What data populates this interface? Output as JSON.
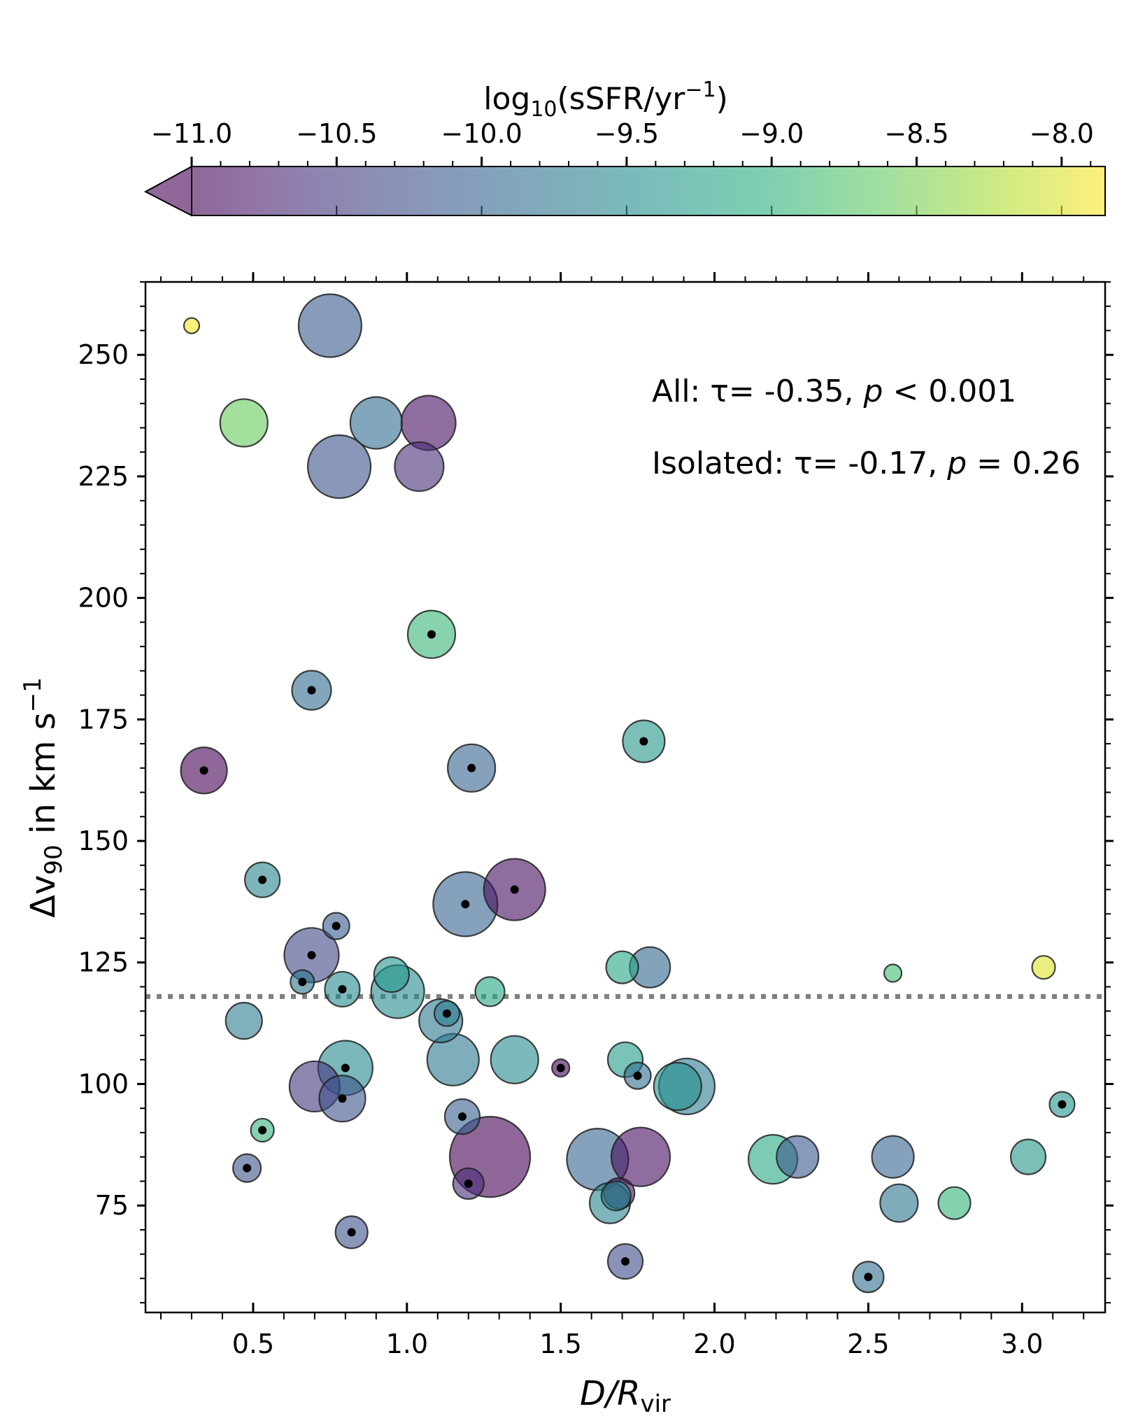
{
  "chart_data": {
    "type": "scatter",
    "title": "",
    "xlabel": "D/R",
    "xlabel_sub": "vir",
    "ylabel": "Δv",
    "ylabel_sub": "90",
    "ylabel_rest": " in km s",
    "ylabel_sup": "−1",
    "xlim": [
      0.15,
      3.27
    ],
    "ylim": [
      53,
      265
    ],
    "xticks": [
      0.5,
      1.0,
      1.5,
      2.0,
      2.5,
      3.0
    ],
    "xtick_labels": [
      "0.5",
      "1.0",
      "1.5",
      "2.0",
      "2.5",
      "3.0"
    ],
    "yticks": [
      75,
      100,
      125,
      150,
      175,
      200,
      225,
      250
    ],
    "ytick_labels": [
      "75",
      "100",
      "125",
      "150",
      "175",
      "200",
      "225",
      "250"
    ],
    "reference_line": {
      "y": 118,
      "style": "dotted",
      "color": "#808080"
    },
    "annotations": [
      {
        "label": "All: ",
        "tau": "τ= -0.35, ",
        "p": "p",
        "rest": " < 0.001"
      },
      {
        "label": "Isolated: ",
        "tau": "τ= -0.17, ",
        "p": "p",
        "rest": " = 0.26"
      }
    ],
    "colorbar": {
      "label_prefix": "log",
      "label_sub": "10",
      "label_mid": "(sSFR/yr",
      "label_sup": "−1",
      "label_end": ")",
      "range": [
        -11.0,
        -7.85
      ],
      "ticks": [
        -11.0,
        -10.5,
        -10.0,
        -9.5,
        -9.0,
        -8.5,
        -8.0
      ],
      "tick_labels": [
        "−11.0",
        "−10.5",
        "−10.0",
        "−9.5",
        "−9.0",
        "−8.5",
        "−8.0"
      ],
      "extend": "min",
      "colormap": "viridis",
      "alpha": 0.6
    },
    "marker_size_note": "relative marker radius",
    "points": [
      {
        "x": 0.3,
        "y": 256.0,
        "r": 0.22,
        "c": -7.9,
        "isolated": false
      },
      {
        "x": 0.75,
        "y": 256.0,
        "r": 0.9,
        "c": -10.1,
        "isolated": false
      },
      {
        "x": 0.47,
        "y": 236.0,
        "r": 0.68,
        "c": -8.6,
        "isolated": false
      },
      {
        "x": 0.9,
        "y": 236.0,
        "r": 0.74,
        "c": -9.9,
        "isolated": false
      },
      {
        "x": 1.07,
        "y": 236.0,
        "r": 0.78,
        "c": -10.9,
        "isolated": false
      },
      {
        "x": 0.78,
        "y": 227.0,
        "r": 0.9,
        "c": -10.2,
        "isolated": false
      },
      {
        "x": 1.04,
        "y": 227.0,
        "r": 0.7,
        "c": -10.6,
        "isolated": false
      },
      {
        "x": 1.08,
        "y": 192.5,
        "r": 0.68,
        "c": -8.9,
        "isolated": true
      },
      {
        "x": 0.69,
        "y": 181.0,
        "r": 0.56,
        "c": -9.9,
        "isolated": true
      },
      {
        "x": 1.77,
        "y": 170.5,
        "r": 0.6,
        "c": -9.35,
        "isolated": true
      },
      {
        "x": 0.34,
        "y": 164.5,
        "r": 0.66,
        "c": -11.0,
        "isolated": true
      },
      {
        "x": 1.21,
        "y": 165.0,
        "r": 0.68,
        "c": -10.0,
        "isolated": true
      },
      {
        "x": 0.53,
        "y": 142.0,
        "r": 0.5,
        "c": -9.6,
        "isolated": true
      },
      {
        "x": 1.35,
        "y": 140.0,
        "r": 0.88,
        "c": -10.9,
        "isolated": true
      },
      {
        "x": 1.19,
        "y": 137.0,
        "r": 0.92,
        "c": -10.0,
        "isolated": true
      },
      {
        "x": 0.77,
        "y": 132.5,
        "r": 0.38,
        "c": -10.1,
        "isolated": true
      },
      {
        "x": 0.69,
        "y": 126.5,
        "r": 0.78,
        "c": -10.35,
        "isolated": true
      },
      {
        "x": 0.66,
        "y": 121.0,
        "r": 0.34,
        "c": -9.8,
        "isolated": true
      },
      {
        "x": 0.79,
        "y": 119.5,
        "r": 0.5,
        "c": -9.5,
        "isolated": true
      },
      {
        "x": 0.95,
        "y": 122.5,
        "r": 0.5,
        "c": -9.35,
        "isolated": false
      },
      {
        "x": 0.97,
        "y": 119.0,
        "r": 0.76,
        "c": -9.5,
        "isolated": false
      },
      {
        "x": 1.27,
        "y": 119.0,
        "r": 0.42,
        "c": -9.15,
        "isolated": false
      },
      {
        "x": 1.7,
        "y": 124.0,
        "r": 0.46,
        "c": -9.15,
        "isolated": false
      },
      {
        "x": 1.79,
        "y": 124.0,
        "r": 0.58,
        "c": -9.95,
        "isolated": false
      },
      {
        "x": 2.58,
        "y": 122.8,
        "r": 0.25,
        "c": -8.85,
        "isolated": false
      },
      {
        "x": 3.07,
        "y": 124.0,
        "r": 0.33,
        "c": -8.0,
        "isolated": false
      },
      {
        "x": 0.47,
        "y": 113.0,
        "r": 0.52,
        "c": -9.7,
        "isolated": false
      },
      {
        "x": 1.13,
        "y": 114.5,
        "r": 0.36,
        "c": -9.7,
        "isolated": true
      },
      {
        "x": 1.11,
        "y": 113.0,
        "r": 0.62,
        "c": -9.75,
        "isolated": false
      },
      {
        "x": 1.15,
        "y": 105.0,
        "r": 0.74,
        "c": -9.75,
        "isolated": false
      },
      {
        "x": 1.35,
        "y": 105.0,
        "r": 0.68,
        "c": -9.5,
        "isolated": false
      },
      {
        "x": 1.5,
        "y": 103.3,
        "r": 0.25,
        "c": -11.0,
        "isolated": true
      },
      {
        "x": 1.71,
        "y": 105.0,
        "r": 0.5,
        "c": -9.3,
        "isolated": false
      },
      {
        "x": 1.75,
        "y": 101.7,
        "r": 0.38,
        "c": -9.9,
        "isolated": true
      },
      {
        "x": 0.7,
        "y": 99.5,
        "r": 0.72,
        "c": -10.5,
        "isolated": false
      },
      {
        "x": 0.8,
        "y": 103.3,
        "r": 0.78,
        "c": -9.55,
        "isolated": true
      },
      {
        "x": 0.79,
        "y": 97.0,
        "r": 0.66,
        "c": -10.2,
        "isolated": true
      },
      {
        "x": 1.88,
        "y": 99.5,
        "r": 0.68,
        "c": -9.45,
        "isolated": false
      },
      {
        "x": 1.91,
        "y": 99.5,
        "r": 0.8,
        "c": -9.7,
        "isolated": false
      },
      {
        "x": 0.53,
        "y": 90.5,
        "r": 0.33,
        "c": -8.95,
        "isolated": true
      },
      {
        "x": 1.18,
        "y": 93.3,
        "r": 0.5,
        "c": -10.05,
        "isolated": true
      },
      {
        "x": 3.13,
        "y": 95.8,
        "r": 0.36,
        "c": -9.4,
        "isolated": true
      },
      {
        "x": 1.27,
        "y": 85.0,
        "r": 1.15,
        "c": -11.0,
        "isolated": false
      },
      {
        "x": 1.62,
        "y": 84.5,
        "r": 0.88,
        "c": -10.0,
        "isolated": false
      },
      {
        "x": 1.76,
        "y": 85.0,
        "r": 0.84,
        "c": -10.9,
        "isolated": false
      },
      {
        "x": 2.19,
        "y": 84.5,
        "r": 0.7,
        "c": -9.1,
        "isolated": false
      },
      {
        "x": 2.27,
        "y": 85.0,
        "r": 0.6,
        "c": -10.15,
        "isolated": false
      },
      {
        "x": 2.58,
        "y": 85.0,
        "r": 0.6,
        "c": -10.0,
        "isolated": false
      },
      {
        "x": 3.02,
        "y": 85.0,
        "r": 0.5,
        "c": -9.35,
        "isolated": false
      },
      {
        "x": 0.48,
        "y": 82.7,
        "r": 0.4,
        "c": -10.2,
        "isolated": true
      },
      {
        "x": 1.2,
        "y": 79.5,
        "r": 0.44,
        "c": -10.6,
        "isolated": true
      },
      {
        "x": 1.69,
        "y": 77.5,
        "r": 0.44,
        "c": -10.8,
        "isolated": false
      },
      {
        "x": 1.68,
        "y": 77.0,
        "r": 0.42,
        "c": -9.55,
        "isolated": false
      },
      {
        "x": 1.66,
        "y": 75.5,
        "r": 0.58,
        "c": -9.6,
        "isolated": false
      },
      {
        "x": 2.6,
        "y": 75.5,
        "r": 0.54,
        "c": -9.8,
        "isolated": false
      },
      {
        "x": 2.78,
        "y": 75.5,
        "r": 0.46,
        "c": -8.95,
        "isolated": false
      },
      {
        "x": 0.82,
        "y": 69.5,
        "r": 0.46,
        "c": -10.2,
        "isolated": true
      },
      {
        "x": 1.71,
        "y": 63.5,
        "r": 0.5,
        "c": -10.3,
        "isolated": true
      },
      {
        "x": 2.5,
        "y": 60.3,
        "r": 0.44,
        "c": -9.85,
        "isolated": true
      }
    ]
  }
}
